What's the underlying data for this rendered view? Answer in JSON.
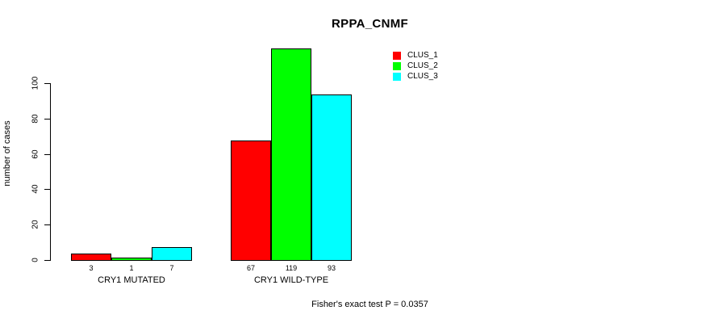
{
  "chart_data": {
    "type": "bar",
    "grouped": true,
    "title": "RPPA_CNMF",
    "categories": [
      "CRY1 MUTATED",
      "CRY1 WILD-TYPE"
    ],
    "series": [
      {
        "name": "CLUS_1",
        "color": "#ff0000",
        "values": [
          3,
          67
        ]
      },
      {
        "name": "CLUS_2",
        "color": "#00ff00",
        "values": [
          1,
          119
        ]
      },
      {
        "name": "CLUS_3",
        "color": "#00ffff",
        "values": [
          7,
          93
        ]
      }
    ],
    "value_labels": [
      [
        3,
        1,
        7
      ],
      [
        67,
        119,
        93
      ]
    ],
    "value_labels_under_bars": true,
    "xlabel": "",
    "ylabel": "number of cases",
    "yticks": [
      0,
      20,
      40,
      60,
      80,
      100
    ],
    "ylim": [
      0,
      100
    ],
    "grid": false,
    "bar_border_color": "#000000",
    "legend_position": "top-right",
    "annotation": "Fisher's exact test P = 0.0357"
  }
}
